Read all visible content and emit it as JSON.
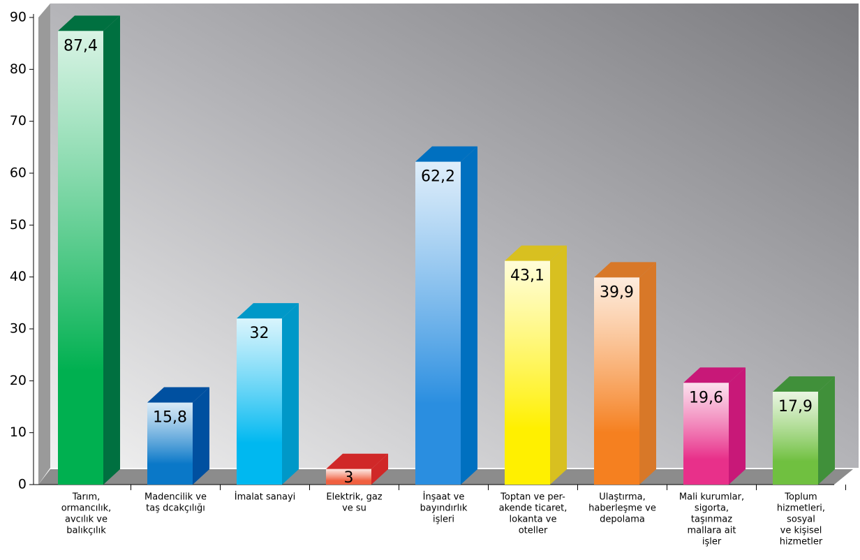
{
  "chart_data": {
    "type": "bar3d",
    "categories": [
      [
        "Tarım,",
        "ormancılık,",
        "avcılık ve",
        "balıkçılık"
      ],
      [
        "Madencilik ve",
        "taş dcakçılığı"
      ],
      [
        "İmalat sanayi"
      ],
      [
        "Elektrik, gaz",
        "ve su"
      ],
      [
        "İnşaat ve",
        "bayındırlık",
        "işleri"
      ],
      [
        "Toptan ve per-",
        "akende ticaret,",
        "lokanta ve",
        "oteller"
      ],
      [
        "Ulaştırma,",
        "haberleşme ve",
        "depolama"
      ],
      [
        "Mali kurumlar,",
        "sigorta,",
        "taşınmaz",
        "mallara ait",
        "işler"
      ],
      [
        "Toplum",
        "hizmetleri,",
        "sosyal",
        "ve kişisel",
        "hizmetler"
      ]
    ],
    "values": [
      87.4,
      15.8,
      32,
      3,
      62.2,
      43.1,
      39.9,
      19.6,
      17.9
    ],
    "value_labels": [
      "87,4",
      "15,8",
      "32",
      "3",
      "62,2",
      "43,1",
      "39,9",
      "19,6",
      "17,9"
    ],
    "colors": [
      "#00b050",
      "#0a78c8",
      "#00b8f0",
      "#f06040",
      "#2a8ee0",
      "#fff000",
      "#f58020",
      "#e8308a",
      "#70c040"
    ],
    "side_colors": [
      "#007040",
      "#0050a0",
      "#0098c8",
      "#d02828",
      "#0070c0",
      "#d8c020",
      "#d87828",
      "#c81878",
      "#40903a"
    ],
    "ylim": [
      0,
      90
    ],
    "yticks": [
      0,
      10,
      20,
      30,
      40,
      50,
      60,
      70,
      80,
      90
    ]
  }
}
